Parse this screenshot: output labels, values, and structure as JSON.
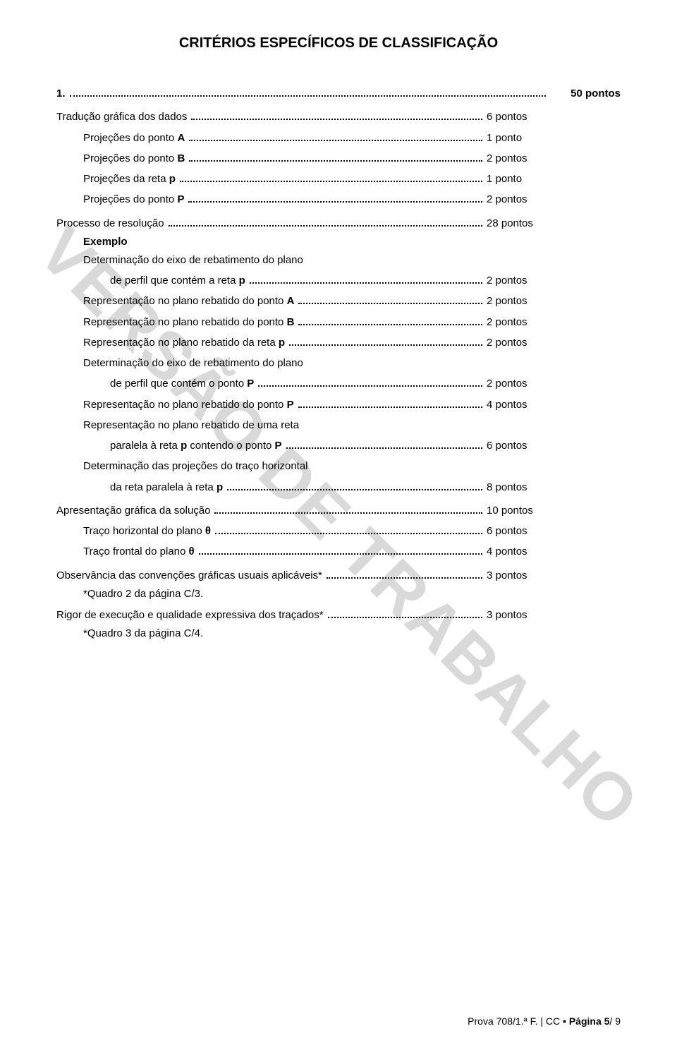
{
  "title": "CRITÉRIOS ESPECÍFICOS DE CLASSIFICAÇÃO",
  "q1": {
    "num": "1.",
    "total": "50 pontos",
    "traducao": {
      "label": "Tradução gráfica dos dados",
      "pts": "6 pontos"
    },
    "projA": {
      "label": "Projeções do ponto A",
      "pts": "1 ponto"
    },
    "projB": {
      "label": "Projeções do ponto B",
      "pts": "2 pontos"
    },
    "projRetaP": {
      "label": "Projeções da reta p",
      "pts": "1 ponto"
    },
    "projP": {
      "label": "Projeções do ponto P",
      "pts": "2 pontos"
    },
    "processo": {
      "label": "Processo de resolução",
      "pts": "28 pontos"
    },
    "exemplo": "Exemplo",
    "det1a": "Determinação do eixo de rebatimento do plano",
    "det1b": {
      "label": "de perfil que contém a reta p",
      "pts": "2 pontos"
    },
    "repA": {
      "label": "Representação no plano rebatido do ponto A",
      "pts": "2 pontos"
    },
    "repB": {
      "label": "Representação no plano rebatido do ponto B",
      "pts": "2 pontos"
    },
    "repRetaP": {
      "label": "Representação no plano rebatido da reta p",
      "pts": "2 pontos"
    },
    "det2a": "Determinação do eixo de rebatimento do plano",
    "det2b": {
      "label": "de perfil que contém o ponto P",
      "pts": "2 pontos"
    },
    "repP": {
      "label": "Representação no plano rebatido do ponto P",
      "pts": "4 pontos"
    },
    "repReta_a": "Representação no plano rebatido de uma reta",
    "repReta_b": {
      "label": "paralela à reta p contendo o ponto P",
      "pts": "6 pontos"
    },
    "detProj_a": "Determinação das projeções do traço horizontal",
    "detProj_b": {
      "label": "da reta paralela à reta p",
      "pts": "8 pontos"
    },
    "apresentacao": {
      "label": "Apresentação gráfica da solução",
      "pts": "10 pontos"
    },
    "tracoH": {
      "label": "Traço horizontal do plano θ",
      "pts": "6 pontos"
    },
    "tracoF": {
      "label": "Traço frontal do plano θ",
      "pts": "4 pontos"
    },
    "observancia": {
      "label": "Observância das convenções gráficas usuais aplicáveis*",
      "pts": "3 pontos"
    },
    "obsNote": "*Quadro 2 da página C/3.",
    "rigor": {
      "label": "Rigor de execução e qualidade expressiva dos traçados*",
      "pts": "3 pontos"
    },
    "rigorNote": "*Quadro 3 da página C/4."
  },
  "footer": {
    "prova": "Prova 708/1.ª F.",
    "sep": " | CC ",
    "pagina": "• Página 5",
    "total": "/ 9"
  },
  "watermark": "VERSÃO DE TRABALHO"
}
